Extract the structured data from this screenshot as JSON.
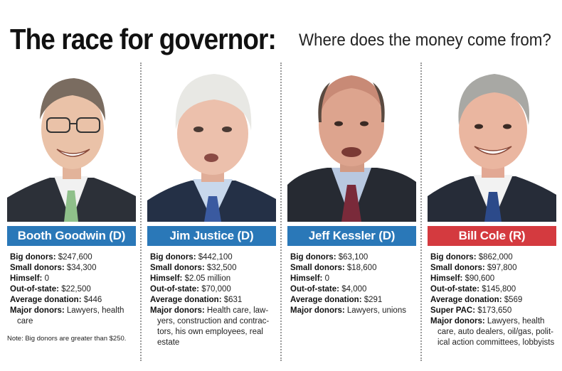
{
  "headline": {
    "main": "The race for governor:",
    "sub": "Where does the money come from?"
  },
  "candidates": [
    {
      "name": "Booth Goodwin (D)",
      "party_color": "#2a78b8",
      "big_donors_label": "Big donors:",
      "big_donors": "$247,600",
      "small_donors_label": "Small donors:",
      "small_donors": "$34,300",
      "himself_label": "Himself:",
      "himself": "0",
      "out_of_state_label": "Out-of-state:",
      "out_of_state": "$22,500",
      "avg_label": "Average donation:",
      "avg": "$446",
      "major_label": "Major donors:",
      "major_l1": "Lawyers, health",
      "major_l2": "care"
    },
    {
      "name": "Jim Justice (D)",
      "party_color": "#2a78b8",
      "big_donors_label": "Big donors:",
      "big_donors": "$442,100",
      "small_donors_label": "Small donors:",
      "small_donors": "$32,500",
      "himself_label": "Himself:",
      "himself": "$2.05 million",
      "out_of_state_label": "Out-of-state:",
      "out_of_state": "$70,000",
      "avg_label": "Average donation:",
      "avg": "$631",
      "major_label": "Major donors:",
      "major_l1": "Health care, law-",
      "major_l2": "yers, construction and contrac-",
      "major_l3": "tors, his own employees, real",
      "major_l4": "estate"
    },
    {
      "name": "Jeff Kessler (D)",
      "party_color": "#2a78b8",
      "big_donors_label": "Big donors:",
      "big_donors": "$63,100",
      "small_donors_label": "Small donors:",
      "small_donors": "$18,600",
      "himself_label": "Himself:",
      "himself": "0",
      "out_of_state_label": "Out-of-state:",
      "out_of_state": "$4,000",
      "avg_label": "Average donation:",
      "avg": "$291",
      "major_label": "Major donors:",
      "major_l1": "Lawyers, unions"
    },
    {
      "name": "Bill Cole (R)",
      "party_color": "#d43a3f",
      "big_donors_label": "Big donors:",
      "big_donors": "$862,000",
      "small_donors_label": "Small donors:",
      "small_donors": "$97,800",
      "himself_label": "Himself:",
      "himself": "$90,600",
      "out_of_state_label": "Out-of-state:",
      "out_of_state": "$145,800",
      "avg_label": "Average donation:",
      "avg": "$569",
      "pac_label": "Super PAC:",
      "pac": "$173,650",
      "major_label": "Major donors:",
      "major_l1": "Lawyers, health",
      "major_l2": "care, auto dealers, oil/gas, polit-",
      "major_l3": "ical action committees, lobbyists"
    }
  ],
  "note": "Note: Big donors are greater than $250."
}
